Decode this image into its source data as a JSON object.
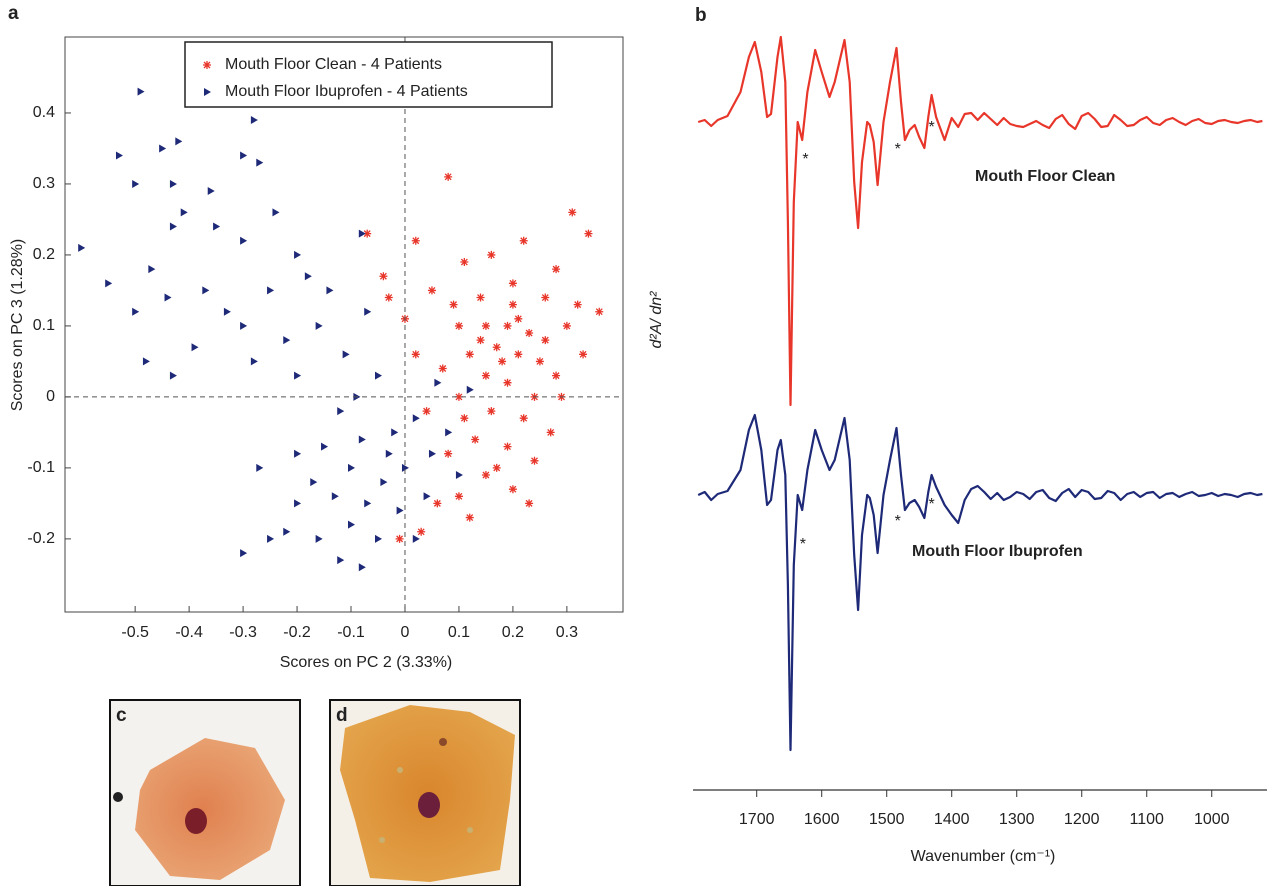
{
  "chart_data": [
    {
      "type": "scatter",
      "panel_label": "a",
      "xlabel": "Scores on PC 2 (3.33%)",
      "ylabel": "Scores on PC 3 (1.28%)",
      "xlim": [
        -0.63,
        0.404
      ],
      "ylim": [
        -0.303,
        0.507
      ],
      "xticks": [
        -0.5,
        -0.4,
        -0.3,
        -0.2,
        -0.1,
        0,
        0.1,
        0.2,
        0.3
      ],
      "yticks": [
        -0.2,
        -0.1,
        0,
        0.1,
        0.2,
        0.3,
        0.4
      ],
      "zero_lines": true,
      "grid": false,
      "legend": "top",
      "series": [
        {
          "name": "Mouth Floor Clean - 4 Patients",
          "color": "#e8362a",
          "marker": "star",
          "x": [
            0.08,
            0.31,
            0.34,
            0.02,
            -0.07,
            0.16,
            0.22,
            0.11,
            0.28,
            0.05,
            -0.03,
            0.14,
            0.2,
            0.26,
            0.36,
            0.0,
            0.1,
            0.15,
            0.19,
            0.23,
            0.3,
            0.17,
            0.21,
            0.25,
            0.12,
            0.07,
            0.28,
            0.33,
            0.15,
            0.19,
            0.24,
            0.1,
            0.04,
            0.16,
            0.22,
            0.27,
            0.13,
            0.19,
            0.08,
            0.24,
            0.15,
            0.2,
            0.1,
            0.06,
            0.12,
            0.03,
            -0.01,
            0.17,
            0.29,
            0.2,
            0.18,
            0.21,
            0.14,
            0.26,
            0.09,
            0.32,
            -0.04,
            0.02,
            0.11,
            0.23
          ],
          "values": [
            0.31,
            0.26,
            0.23,
            0.22,
            0.23,
            0.2,
            0.22,
            0.19,
            0.18,
            0.15,
            0.14,
            0.14,
            0.13,
            0.14,
            0.12,
            0.11,
            0.1,
            0.1,
            0.1,
            0.09,
            0.1,
            0.07,
            0.06,
            0.05,
            0.06,
            0.04,
            0.03,
            0.06,
            0.03,
            0.02,
            0.0,
            0.0,
            -0.02,
            -0.02,
            -0.03,
            -0.05,
            -0.06,
            -0.07,
            -0.08,
            -0.09,
            -0.11,
            -0.13,
            -0.14,
            -0.15,
            -0.17,
            -0.19,
            -0.2,
            -0.1,
            0.0,
            0.16,
            0.05,
            0.11,
            0.08,
            0.08,
            0.13,
            0.13,
            0.17,
            0.06,
            -0.03,
            -0.15
          ]
        },
        {
          "name": "Mouth Floor Ibuprofen - 4 Patients",
          "color": "#1e2a78",
          "marker": "triangle-right",
          "x": [
            -0.49,
            -0.28,
            -0.53,
            -0.45,
            -0.42,
            -0.5,
            -0.43,
            -0.36,
            -0.3,
            -0.27,
            -0.41,
            -0.43,
            -0.6,
            -0.55,
            -0.47,
            -0.35,
            -0.3,
            -0.24,
            -0.2,
            -0.18,
            -0.5,
            -0.37,
            -0.25,
            -0.14,
            -0.08,
            -0.48,
            -0.43,
            -0.39,
            -0.3,
            -0.22,
            -0.16,
            -0.11,
            -0.28,
            -0.07,
            -0.2,
            -0.12,
            -0.05,
            -0.02,
            0.02,
            0.06,
            -0.08,
            -0.15,
            -0.1,
            -0.04,
            0.0,
            0.05,
            -0.17,
            -0.13,
            -0.07,
            -0.01,
            0.04,
            -0.2,
            -0.22,
            -0.16,
            -0.1,
            -0.05,
            -0.25,
            -0.3,
            -0.12,
            -0.08,
            -0.27,
            -0.2,
            0.08,
            0.1,
            -0.03,
            0.12,
            -0.09,
            -0.33,
            -0.44,
            0.02
          ],
          "values": [
            0.43,
            0.39,
            0.34,
            0.35,
            0.36,
            0.3,
            0.3,
            0.29,
            0.34,
            0.33,
            0.26,
            0.24,
            0.21,
            0.16,
            0.18,
            0.24,
            0.22,
            0.26,
            0.2,
            0.17,
            0.12,
            0.15,
            0.15,
            0.15,
            0.23,
            0.05,
            0.03,
            0.07,
            0.1,
            0.08,
            0.1,
            0.06,
            0.05,
            0.12,
            0.03,
            -0.02,
            0.03,
            -0.05,
            -0.03,
            0.02,
            -0.06,
            -0.07,
            -0.1,
            -0.12,
            -0.1,
            -0.08,
            -0.12,
            -0.14,
            -0.15,
            -0.16,
            -0.14,
            -0.15,
            -0.19,
            -0.2,
            -0.18,
            -0.2,
            -0.2,
            -0.22,
            -0.23,
            -0.24,
            -0.1,
            -0.08,
            -0.05,
            -0.11,
            -0.08,
            0.01,
            0.0,
            0.12,
            0.14,
            -0.2
          ]
        }
      ]
    },
    {
      "type": "line",
      "panel_label": "b",
      "xlabel": "Wavenumber (cm⁻¹)",
      "ylabel": "d²A/ dn²",
      "xlim": [
        1798,
        915
      ],
      "xticks": [
        1700,
        1600,
        1500,
        1400,
        1300,
        1200,
        1100,
        1000
      ],
      "x": [
        1790,
        1780,
        1770,
        1760,
        1745,
        1725,
        1712,
        1703,
        1693,
        1684,
        1678,
        1668,
        1663,
        1656,
        1652,
        1648,
        1643,
        1637,
        1630,
        1622,
        1610,
        1600,
        1588,
        1580,
        1565,
        1557,
        1550,
        1544,
        1538,
        1530,
        1526,
        1520,
        1514,
        1505,
        1495,
        1485,
        1478,
        1472,
        1465,
        1457,
        1450,
        1442,
        1436,
        1431,
        1424,
        1411,
        1400,
        1390,
        1380,
        1370,
        1360,
        1350,
        1340,
        1330,
        1320,
        1310,
        1300,
        1290,
        1280,
        1270,
        1260,
        1250,
        1240,
        1230,
        1220,
        1210,
        1200,
        1190,
        1180,
        1170,
        1160,
        1150,
        1140,
        1130,
        1120,
        1110,
        1100,
        1090,
        1080,
        1070,
        1060,
        1050,
        1040,
        1030,
        1020,
        1010,
        1000,
        990,
        980,
        970,
        960,
        950,
        940,
        930,
        922
      ],
      "series": [
        {
          "name": "Mouth Floor Clean",
          "color": "#e8362a",
          "values": [
            0,
            0.2,
            -0.4,
            0.2,
            0.6,
            3.0,
            6.5,
            8.0,
            5.0,
            0.5,
            0.8,
            6.5,
            8.5,
            4.0,
            -10,
            -28.3,
            -8,
            0,
            -1.8,
            3,
            7.2,
            5,
            2.5,
            4,
            8.2,
            4,
            -6,
            -10.6,
            -4,
            0,
            -0.3,
            -2,
            -6.3,
            0,
            4,
            7.4,
            2,
            -1.8,
            -0.8,
            -0.3,
            -1.5,
            -2.6,
            0.5,
            2.7,
            0.5,
            -1.8,
            0.4,
            -0.5,
            0.8,
            0.9,
            0.2,
            0.9,
            0.3,
            -0.3,
            0.4,
            -0.2,
            -0.4,
            -0.5,
            -0.2,
            0.1,
            -0.3,
            -0.6,
            0.3,
            0.7,
            -0.2,
            -0.7,
            0.6,
            0.9,
            0.3,
            -0.5,
            -0.4,
            0.7,
            0.2,
            -0.4,
            -0.3,
            0.2,
            0.5,
            -0.1,
            -0.3,
            0.2,
            0.4,
            0,
            -0.3,
            0.1,
            0.3,
            -0.1,
            -0.2,
            0.1,
            0.2,
            0,
            -0.1,
            0.1,
            0.2,
            0,
            0.1
          ],
          "annotations": [
            {
              "text": "*",
              "x": 1625,
              "y": -3.8
            },
            {
              "text": "*",
              "x": 1483,
              "y": -2.8
            },
            {
              "text": "*",
              "x": 1431,
              "y": -0.6
            }
          ]
        },
        {
          "name": "Mouth Floor Ibuprofen",
          "color": "#1e2a78",
          "values": [
            0,
            0.3,
            -0.5,
            0.1,
            0.4,
            2.5,
            6.5,
            8.0,
            4.5,
            -1.0,
            -0.5,
            4.5,
            5.5,
            2.0,
            -9,
            -25.5,
            -7,
            0,
            -1.5,
            2.5,
            6.5,
            4.5,
            2.5,
            3.5,
            7.7,
            3.5,
            -6,
            -11.5,
            -4,
            0,
            -0.3,
            -2,
            -5.8,
            0,
            3.5,
            6.7,
            2,
            -1.5,
            -0.8,
            -0.5,
            -1.2,
            -2.3,
            0.3,
            2.0,
            0.8,
            -1.0,
            -2.0,
            -2.8,
            -0.5,
            0.6,
            0.9,
            0.3,
            -0.4,
            0.2,
            -0.5,
            -0.2,
            0.3,
            0.1,
            -0.4,
            0.3,
            0.5,
            -0.3,
            -0.6,
            0.2,
            0.6,
            -0.2,
            0.5,
            0.3,
            -0.4,
            -0.3,
            0.4,
            0.2,
            -0.5,
            0.1,
            0.3,
            -0.2,
            0.2,
            0.3,
            -0.3,
            0.1,
            0.2,
            -0.2,
            0.1,
            0.3,
            -0.1,
            0,
            0.2,
            -0.1,
            0.1,
            0,
            -0.2,
            0.1,
            0.2,
            0,
            0.1
          ],
          "annotations": [
            {
              "text": "*",
              "x": 1629,
              "y": -5.0
            },
            {
              "text": "*",
              "x": 1483,
              "y": -2.7
            },
            {
              "text": "*",
              "x": 1431,
              "y": -1.0
            }
          ]
        }
      ]
    }
  ],
  "images": [
    {
      "label": "c"
    },
    {
      "label": "d"
    }
  ]
}
